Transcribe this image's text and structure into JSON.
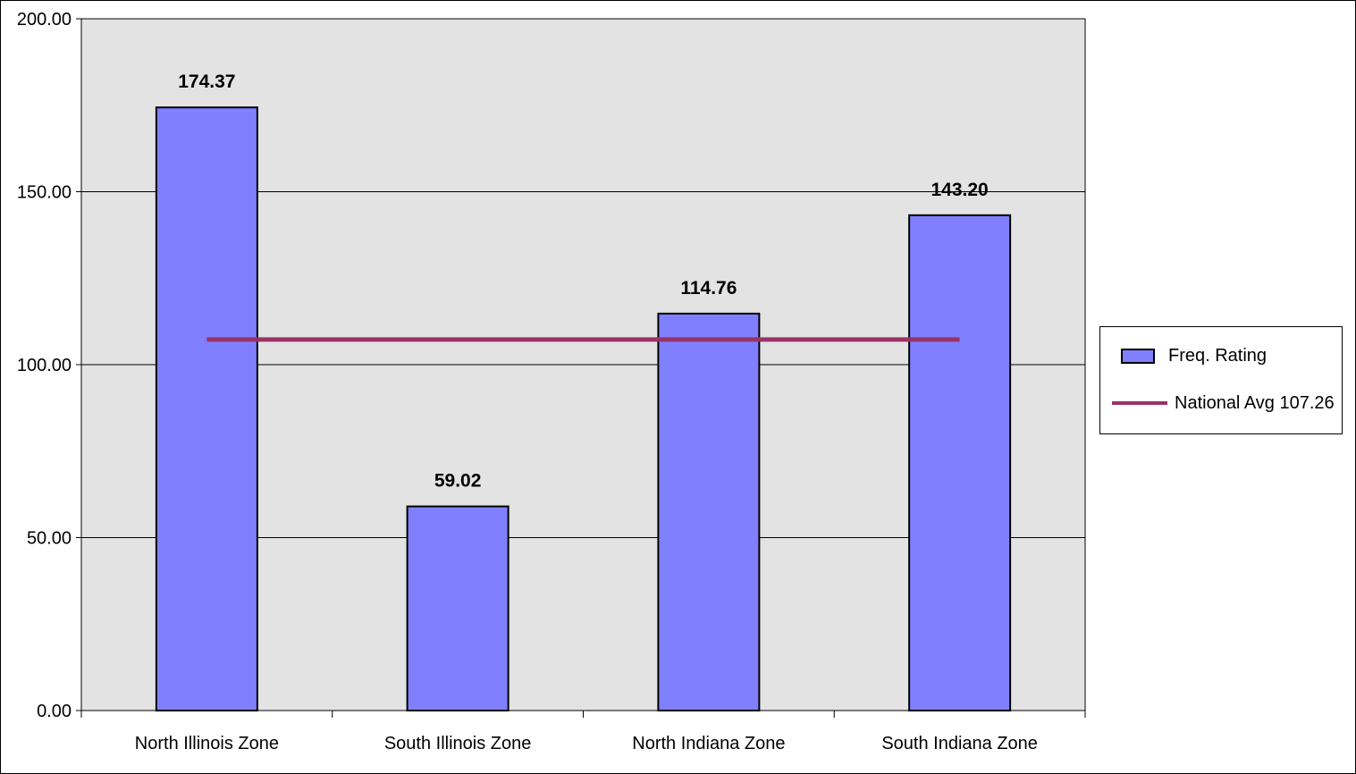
{
  "chart_data": {
    "type": "bar",
    "categories": [
      "North Illinois Zone",
      "South Illinois Zone",
      "North Indiana Zone",
      "South Indiana Zone"
    ],
    "series": [
      {
        "name": "Freq. Rating",
        "type": "bar",
        "values": [
          174.37,
          59.02,
          114.76,
          143.2
        ],
        "data_labels": [
          "174.37",
          "59.02",
          "114.76",
          "143.20"
        ]
      },
      {
        "name": "National Avg 107.26",
        "type": "line",
        "values": [
          107.26,
          107.26,
          107.26,
          107.26
        ]
      }
    ],
    "title": "",
    "xlabel": "",
    "ylabel": "",
    "ylim": [
      0,
      200
    ],
    "yticks": [
      "0.00",
      "50.00",
      "100.00",
      "150.00",
      "200.00"
    ],
    "grid": true,
    "legend_position": "right",
    "colors": {
      "bar": "#8080FF",
      "line": "#993366",
      "plot_background": "#E3E3E3"
    }
  }
}
